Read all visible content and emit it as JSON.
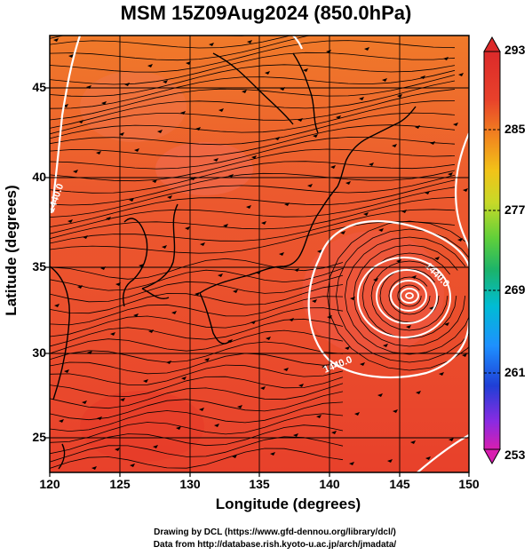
{
  "title": "MSM 15Z09Aug2024 (850.0hPa)",
  "axes": {
    "xlabel": "Longitude (degrees)",
    "ylabel": "Latitude  (degrees)",
    "xticks": [
      "120",
      "125",
      "130",
      "135",
      "140",
      "145",
      "150"
    ],
    "yticks": [
      "45",
      "40",
      "35",
      "30",
      "25"
    ]
  },
  "colorbar": {
    "ticks": [
      "293",
      "285",
      "277",
      "269",
      "261",
      "253"
    ],
    "colors": [
      "#d81eb0",
      "#8a2be2",
      "#1f3fd6",
      "#1e90ff",
      "#00bcd4",
      "#1bb36b",
      "#5fcf3a",
      "#c7d928",
      "#f2c318",
      "#f28a1e",
      "#e8412b",
      "#dc2a2a"
    ]
  },
  "contours": {
    "labels": [
      "1440.0",
      "1440.0",
      "1440.0"
    ]
  },
  "map": {
    "lon_range": [
      120,
      150
    ],
    "lat_range": [
      22.5,
      48
    ],
    "field_color_main": "#ee4a32",
    "field_color_north": "#f07a2a"
  },
  "credits": {
    "line1": "Drawing by DCL (https://www.gfd-dennou.org/library/dcl/)",
    "line2": "Data from http://database.rish.kyoto-u.ac.jp/arch/jmadata/"
  }
}
